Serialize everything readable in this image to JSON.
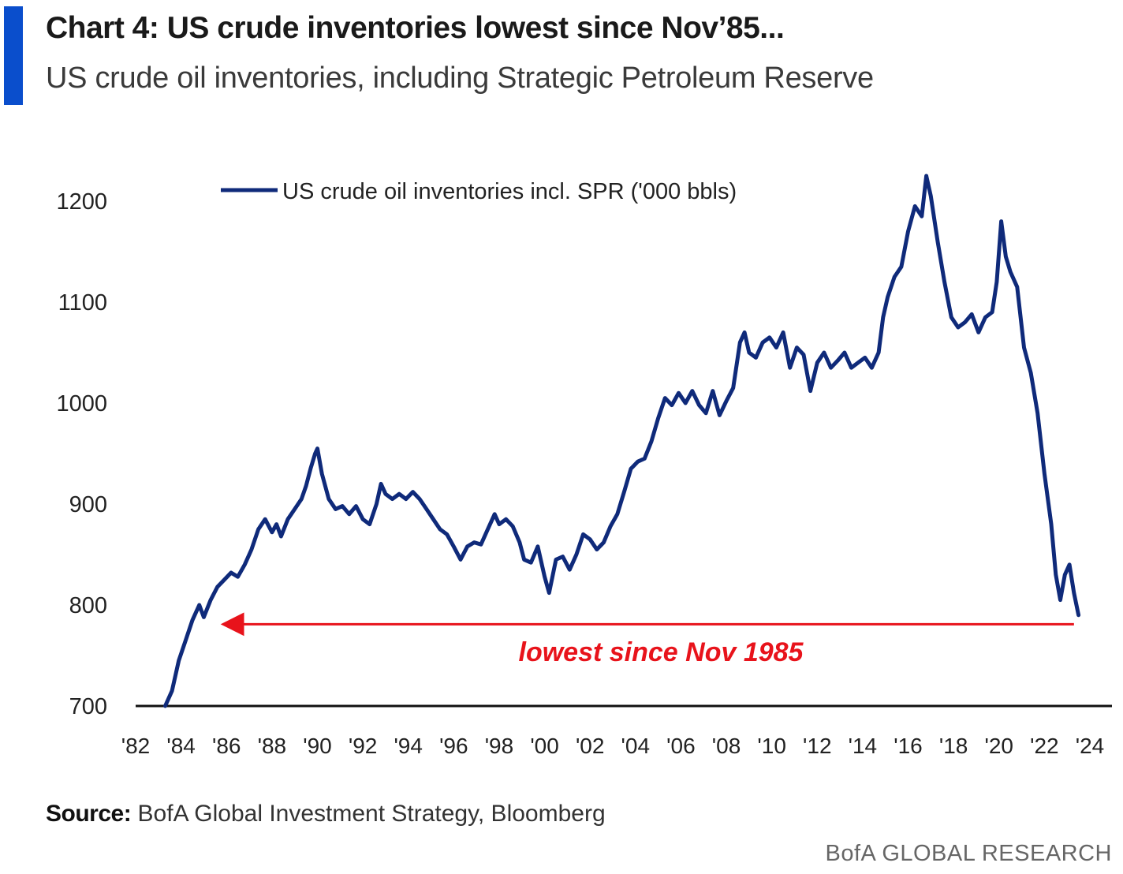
{
  "header": {
    "title": "Chart 4: US crude inventories lowest since Nov’85...",
    "subtitle": "US crude oil inventories, including Strategic Petroleum Reserve"
  },
  "footer": {
    "source_label": "Source:",
    "source_text": "BofA Global Investment Strategy, Bloomberg",
    "brand": "BofA GLOBAL RESEARCH"
  },
  "colors": {
    "accent": "#0a4ecc",
    "series": "#0f2a7a",
    "annotation": "#e8131b",
    "axis": "#111111"
  },
  "chart_data": {
    "type": "line",
    "title": "Chart 4: US crude inventories lowest since Nov’85...",
    "subtitle": "US crude oil inventories, including Strategic Petroleum Reserve",
    "xlabel": "",
    "ylabel": "",
    "xlim": [
      1982,
      2024
    ],
    "ylim": [
      700,
      1250
    ],
    "y_ticks": [
      700,
      800,
      900,
      1000,
      1100,
      1200
    ],
    "y_tick_labels": [
      "700",
      "800",
      "900",
      "1000",
      "1100",
      "1200"
    ],
    "x_ticks": [
      1982,
      1984,
      1986,
      1988,
      1990,
      1992,
      1994,
      1996,
      1998,
      2000,
      2002,
      2004,
      2006,
      2008,
      2010,
      2012,
      2014,
      2016,
      2018,
      2020,
      2022,
      2024
    ],
    "x_tick_labels": [
      "'82",
      "'84",
      "'86",
      "'88",
      "'90",
      "'92",
      "'94",
      "'96",
      "'98",
      "'00",
      "'02",
      "'04",
      "'06",
      "'08",
      "'10",
      "'12",
      "'14",
      "'16",
      "'18",
      "'20",
      "'22",
      "'24"
    ],
    "grid": false,
    "legend": {
      "placement": "top-center",
      "entries": [
        "US crude oil inventories incl. SPR ('000 bbls)"
      ]
    },
    "series": [
      {
        "name": "US crude oil inventories incl. SPR ('000 bbls)",
        "x": [
          1983.3,
          1983.6,
          1983.9,
          1984.2,
          1984.5,
          1984.8,
          1985.0,
          1985.3,
          1985.6,
          1985.9,
          1986.2,
          1986.5,
          1986.8,
          1987.1,
          1987.4,
          1987.7,
          1988.0,
          1988.2,
          1988.4,
          1988.7,
          1989.0,
          1989.3,
          1989.5,
          1989.7,
          1989.9,
          1990.0,
          1990.2,
          1990.5,
          1990.8,
          1991.1,
          1991.4,
          1991.7,
          1992.0,
          1992.3,
          1992.6,
          1992.8,
          1993.0,
          1993.3,
          1993.6,
          1993.9,
          1994.2,
          1994.5,
          1994.8,
          1995.1,
          1995.4,
          1995.7,
          1996.0,
          1996.3,
          1996.6,
          1996.9,
          1997.2,
          1997.5,
          1997.8,
          1998.0,
          1998.3,
          1998.6,
          1998.9,
          1999.1,
          1999.4,
          1999.7,
          2000.0,
          2000.2,
          2000.5,
          2000.8,
          2001.1,
          2001.4,
          2001.7,
          2002.0,
          2002.3,
          2002.6,
          2002.9,
          2003.2,
          2003.5,
          2003.8,
          2004.1,
          2004.4,
          2004.7,
          2005.0,
          2005.3,
          2005.6,
          2005.9,
          2006.2,
          2006.5,
          2006.8,
          2007.1,
          2007.4,
          2007.7,
          2008.0,
          2008.3,
          2008.6,
          2008.8,
          2009.0,
          2009.3,
          2009.6,
          2009.9,
          2010.2,
          2010.5,
          2010.8,
          2011.1,
          2011.4,
          2011.7,
          2012.0,
          2012.3,
          2012.6,
          2012.9,
          2013.2,
          2013.5,
          2013.8,
          2014.1,
          2014.4,
          2014.7,
          2014.9,
          2015.1,
          2015.4,
          2015.7,
          2016.0,
          2016.3,
          2016.6,
          2016.8,
          2017.0,
          2017.3,
          2017.6,
          2017.9,
          2018.2,
          2018.5,
          2018.8,
          2019.1,
          2019.4,
          2019.7,
          2019.9,
          2020.1,
          2020.3,
          2020.5,
          2020.8,
          2021.1,
          2021.4,
          2021.7,
          2022.0,
          2022.3,
          2022.5,
          2022.7,
          2022.9,
          2023.1,
          2023.3,
          2023.5
        ],
        "values": [
          700,
          715,
          745,
          765,
          785,
          800,
          788,
          805,
          818,
          825,
          832,
          828,
          840,
          855,
          875,
          885,
          872,
          880,
          868,
          885,
          895,
          905,
          918,
          935,
          950,
          955,
          930,
          905,
          895,
          898,
          890,
          898,
          885,
          880,
          900,
          920,
          910,
          905,
          910,
          905,
          912,
          905,
          895,
          885,
          875,
          870,
          858,
          845,
          858,
          862,
          860,
          875,
          890,
          880,
          885,
          878,
          862,
          845,
          842,
          858,
          828,
          812,
          845,
          848,
          835,
          850,
          870,
          865,
          855,
          862,
          878,
          890,
          912,
          935,
          942,
          945,
          962,
          985,
          1005,
          998,
          1010,
          1000,
          1012,
          998,
          990,
          1012,
          988,
          1002,
          1015,
          1060,
          1070,
          1050,
          1045,
          1060,
          1065,
          1055,
          1070,
          1035,
          1055,
          1048,
          1012,
          1040,
          1050,
          1035,
          1042,
          1050,
          1035,
          1040,
          1045,
          1035,
          1050,
          1085,
          1105,
          1125,
          1135,
          1170,
          1195,
          1185,
          1225,
          1205,
          1160,
          1120,
          1085,
          1075,
          1080,
          1088,
          1070,
          1085,
          1090,
          1120,
          1180,
          1145,
          1130,
          1115,
          1055,
          1030,
          990,
          930,
          880,
          830,
          805,
          830,
          840,
          812,
          790
        ]
      }
    ],
    "annotations": [
      {
        "text": "lowest since Nov 1985",
        "arrow_from": {
          "x": 2023.3,
          "y": 781
        },
        "arrow_to": {
          "x": 1985.6,
          "y": 781
        }
      }
    ]
  }
}
